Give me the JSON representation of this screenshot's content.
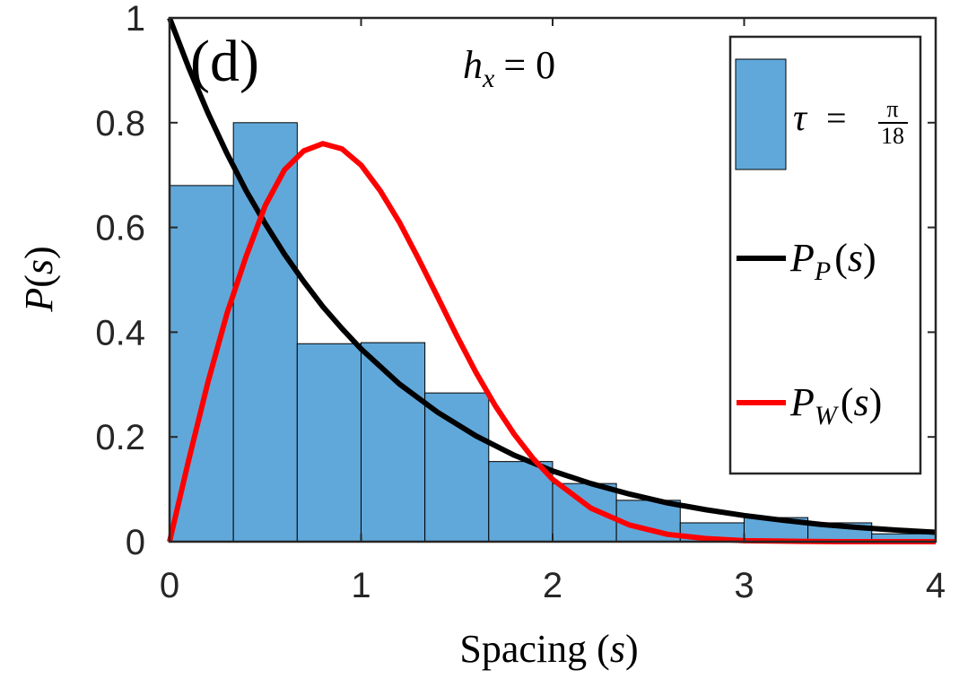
{
  "chart_data": {
    "type": "bar",
    "panel_label": "(d)",
    "annotation": {
      "symbol": "h",
      "subscript": "x",
      "relation": "= 0"
    },
    "xlabel": {
      "text": "Spacing (",
      "var": "s",
      "close": ")"
    },
    "ylabel": {
      "func": "P",
      "open": "(",
      "var": "s",
      "close": ")"
    },
    "xlim": [
      0,
      4
    ],
    "ylim": [
      0,
      1
    ],
    "xticks": [
      "0",
      "1",
      "2",
      "3",
      "4"
    ],
    "yticks": [
      "0",
      "0.2",
      "0.4",
      "0.6",
      "0.8",
      "1"
    ],
    "grid": false,
    "legend_position": "top-right",
    "histogram": {
      "bin_width": 0.3333,
      "x_start": 0,
      "values": [
        0.68,
        0.8,
        0.378,
        0.38,
        0.284,
        0.153,
        0.111,
        0.079,
        0.036,
        0.046,
        0.036,
        0.015
      ],
      "color": "#61a8da",
      "edge_color": "#000000"
    },
    "curves": [
      {
        "id": "poisson",
        "color": "#000000",
        "x": [
          0,
          0.1,
          0.2,
          0.3,
          0.4,
          0.5,
          0.6,
          0.7,
          0.8,
          0.9,
          1.0,
          1.2,
          1.4,
          1.6,
          1.8,
          2.0,
          2.2,
          2.4,
          2.6,
          2.8,
          3.0,
          3.2,
          3.4,
          3.6,
          3.8,
          4.0
        ],
        "y": [
          1,
          0.905,
          0.819,
          0.741,
          0.67,
          0.607,
          0.549,
          0.497,
          0.449,
          0.407,
          0.368,
          0.301,
          0.247,
          0.202,
          0.165,
          0.135,
          0.111,
          0.091,
          0.074,
          0.061,
          0.05,
          0.041,
          0.033,
          0.027,
          0.022,
          0.018
        ]
      },
      {
        "id": "wigner",
        "color": "#ff0000",
        "x": [
          0,
          0.1,
          0.2,
          0.3,
          0.4,
          0.5,
          0.6,
          0.7,
          0.8,
          0.9,
          1.0,
          1.1,
          1.2,
          1.3,
          1.4,
          1.5,
          1.6,
          1.7,
          1.8,
          1.9,
          2.0,
          2.2,
          2.4,
          2.6,
          2.8,
          3.0,
          3.2,
          3.5,
          4.0
        ],
        "y": [
          0,
          0.156,
          0.304,
          0.436,
          0.545,
          0.642,
          0.71,
          0.746,
          0.76,
          0.75,
          0.719,
          0.67,
          0.61,
          0.54,
          0.467,
          0.393,
          0.323,
          0.26,
          0.205,
          0.158,
          0.119,
          0.064,
          0.032,
          0.014,
          0.006,
          0.002,
          0.001,
          0.0,
          0.0
        ]
      }
    ],
    "legend": [
      {
        "id": "bars",
        "symbol": "τ",
        "eq": "=",
        "frac_num": "π",
        "frac_den": "18"
      },
      {
        "id": "poisson",
        "func": "P",
        "sub": "P",
        "open": "(",
        "var": "s",
        "close": ")"
      },
      {
        "id": "wigner",
        "func": "P",
        "sub": "W",
        "open": "(",
        "var": "s",
        "close": ")"
      }
    ]
  }
}
